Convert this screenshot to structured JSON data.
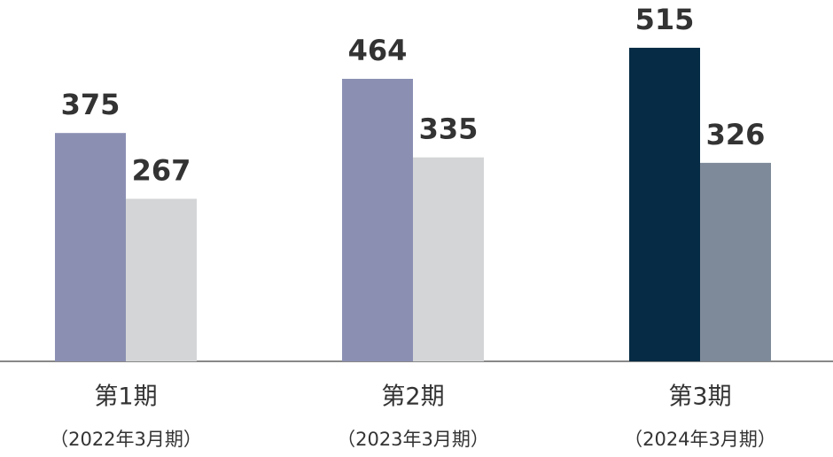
{
  "chart_data": {
    "type": "bar",
    "categories": [
      "第1期",
      "第2期",
      "第3期"
    ],
    "category_notes": [
      "（2022年3月期）",
      "（2023年3月期）",
      "（2024年3月期）"
    ],
    "series": [
      {
        "values": [
          375,
          464,
          515
        ],
        "colors": [
          "#8b90b3",
          "#8b90b3",
          "#052b45"
        ]
      },
      {
        "values": [
          267,
          335,
          326
        ],
        "colors": [
          "#d4d5d7",
          "#d4d5d7",
          "#7e8a99"
        ]
      }
    ],
    "ylim": [
      0,
      560
    ]
  }
}
